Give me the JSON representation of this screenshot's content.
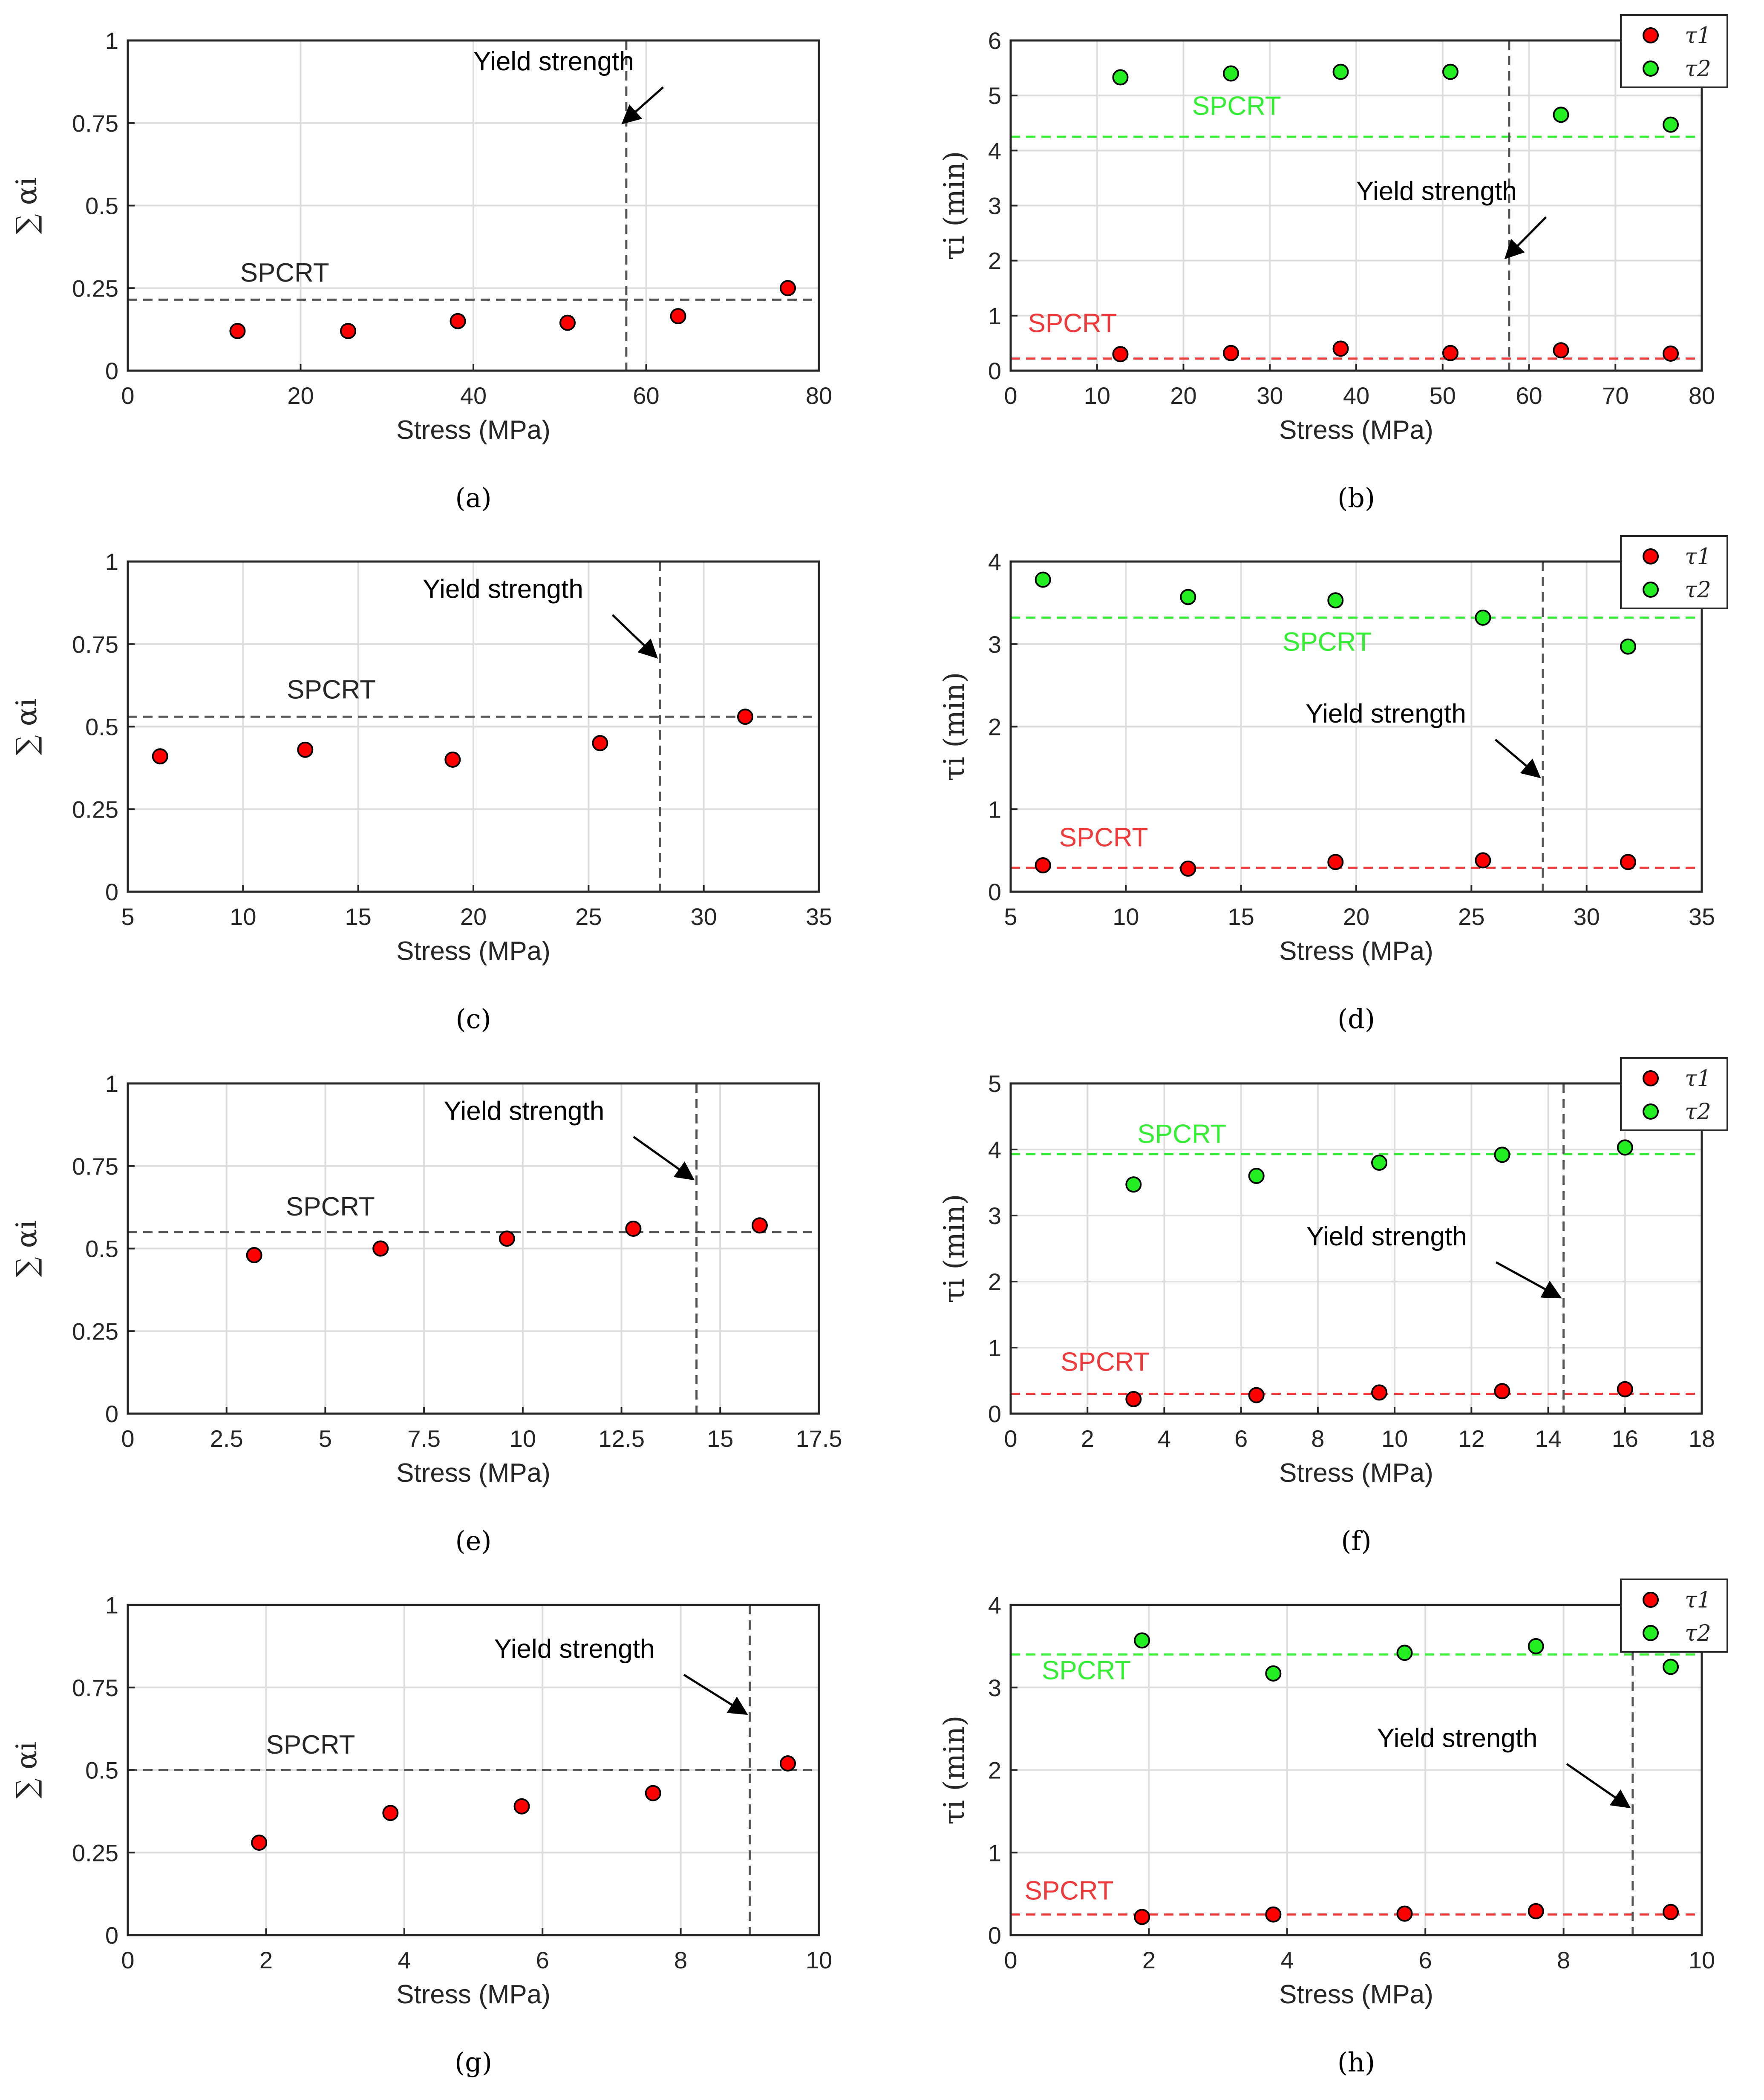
{
  "colors": {
    "tau1": "#ff0000",
    "tau2": "#22ee22",
    "tau1_line": "#ee3a3a",
    "tau2_line": "#33ee33",
    "marker_edge": "#000000",
    "sum_line": "#555555",
    "yield_line": "#555555",
    "grid": "#dddddd",
    "axes": "#262626"
  },
  "chart_data": [
    {
      "id": "a",
      "type": "scatter",
      "caption": "(a)",
      "xlabel": "Stress (MPa)",
      "ylabel": "∑ αi",
      "xlim": [
        0,
        80
      ],
      "ylim": [
        0,
        1
      ],
      "xticks": [
        0,
        20,
        40,
        60,
        80
      ],
      "xtick_labels": [
        "0",
        "20",
        "40",
        "60",
        "80"
      ],
      "yticks": [
        0,
        0.25,
        0.5,
        0.75,
        1
      ],
      "ytick_labels": [
        "0",
        "0.25",
        "0.5",
        "0.75",
        "1"
      ],
      "series": [
        {
          "name": "∑αi",
          "color_key": "tau1",
          "x": [
            12.7,
            25.5,
            38.2,
            50.9,
            63.7,
            76.4
          ],
          "y": [
            0.12,
            0.12,
            0.15,
            0.145,
            0.165,
            0.25
          ]
        }
      ],
      "hlines": [
        {
          "y": 0.215,
          "label": "SPCRT",
          "color_key": "sum_line",
          "label_x": 13,
          "label_y": 0.27
        }
      ],
      "yield": {
        "x": 57.7,
        "label": "Yield strength",
        "label_x": 40,
        "label_y": 0.91,
        "arrow_to_y": 0.75
      }
    },
    {
      "id": "b",
      "type": "scatter",
      "caption": "(b)",
      "xlabel": "Stress (MPa)",
      "ylabel": "τi (min)",
      "xlim": [
        0,
        80
      ],
      "ylim": [
        0,
        6
      ],
      "xticks": [
        0,
        10,
        20,
        30,
        40,
        50,
        60,
        70,
        80
      ],
      "xtick_labels": [
        "0",
        "10",
        "20",
        "30",
        "40",
        "50",
        "60",
        "70",
        "80"
      ],
      "yticks": [
        0,
        1,
        2,
        3,
        4,
        5,
        6
      ],
      "ytick_labels": [
        "0",
        "1",
        "2",
        "3",
        "4",
        "5",
        "6"
      ],
      "series": [
        {
          "name": "τ1",
          "color_key": "tau1",
          "x": [
            12.7,
            25.5,
            38.2,
            50.9,
            63.7,
            76.4
          ],
          "y": [
            0.3,
            0.32,
            0.4,
            0.32,
            0.37,
            0.31
          ]
        },
        {
          "name": "τ2",
          "color_key": "tau2",
          "x": [
            12.7,
            25.5,
            38.2,
            50.9,
            63.7,
            76.4
          ],
          "y": [
            5.33,
            5.4,
            5.43,
            5.43,
            4.65,
            4.47
          ]
        }
      ],
      "hlines": [
        {
          "y": 0.22,
          "label": "SPCRT",
          "color_key": "tau1_line",
          "label_x": 2,
          "label_y": 0.7
        },
        {
          "y": 4.25,
          "label": "SPCRT",
          "color_key": "tau2_line",
          "label_x": 21,
          "label_y": 4.65
        }
      ],
      "yield": {
        "x": 57.7,
        "label": "Yield strength",
        "label_x": 40,
        "label_y": 3.1,
        "arrow_to_y": 2.05
      },
      "legend": {
        "entries": [
          "τ1",
          "τ2"
        ],
        "position": "top-right-outside"
      }
    },
    {
      "id": "c",
      "type": "scatter",
      "caption": "(c)",
      "xlabel": "Stress (MPa)",
      "ylabel": "∑ αi",
      "xlim": [
        5,
        35
      ],
      "ylim": [
        0,
        1
      ],
      "xticks": [
        5,
        10,
        15,
        20,
        25,
        30,
        35
      ],
      "xtick_labels": [
        "5",
        "10",
        "15",
        "20",
        "25",
        "30",
        "35"
      ],
      "yticks": [
        0,
        0.25,
        0.5,
        0.75,
        1
      ],
      "ytick_labels": [
        "0",
        "0.25",
        "0.5",
        "0.75",
        "1"
      ],
      "series": [
        {
          "name": "∑αi",
          "color_key": "tau1",
          "x": [
            6.4,
            12.7,
            19.1,
            25.5,
            31.8
          ],
          "y": [
            0.41,
            0.43,
            0.4,
            0.45,
            0.53
          ]
        }
      ],
      "hlines": [
        {
          "y": 0.53,
          "label": "SPCRT",
          "color_key": "sum_line",
          "label_x": 11.9,
          "label_y": 0.585
        }
      ],
      "yield": {
        "x": 28.1,
        "label": "Yield strength",
        "label_x": 17.8,
        "label_y": 0.89,
        "arrow_to_y": 0.71
      }
    },
    {
      "id": "d",
      "type": "scatter",
      "caption": "(d)",
      "xlabel": "Stress (MPa)",
      "ylabel": "τi (min)",
      "xlim": [
        5,
        35
      ],
      "ylim": [
        0,
        4
      ],
      "xticks": [
        5,
        10,
        15,
        20,
        25,
        30,
        35
      ],
      "xtick_labels": [
        "5",
        "10",
        "15",
        "20",
        "25",
        "30",
        "35"
      ],
      "yticks": [
        0,
        1,
        2,
        3,
        4
      ],
      "ytick_labels": [
        "0",
        "1",
        "2",
        "3",
        "4"
      ],
      "series": [
        {
          "name": "τ1",
          "color_key": "tau1",
          "x": [
            6.4,
            12.7,
            19.1,
            25.5,
            31.8
          ],
          "y": [
            0.32,
            0.28,
            0.36,
            0.38,
            0.36
          ]
        },
        {
          "name": "τ2",
          "color_key": "tau2",
          "x": [
            6.4,
            12.7,
            19.1,
            25.5,
            31.8
          ],
          "y": [
            3.78,
            3.57,
            3.53,
            3.32,
            2.97
          ]
        }
      ],
      "hlines": [
        {
          "y": 0.29,
          "label": "SPCRT",
          "color_key": "tau1_line",
          "label_x": 7.1,
          "label_y": 0.55
        },
        {
          "y": 3.32,
          "label": "SPCRT",
          "color_key": "tau2_line",
          "label_x": 16.8,
          "label_y": 2.92
        }
      ],
      "yield": {
        "x": 28.1,
        "label": "Yield strength",
        "label_x": 17.8,
        "label_y": 2.05,
        "arrow_to_y": 1.39
      },
      "legend": {
        "entries": [
          "τ1",
          "τ2"
        ],
        "position": "top-right-outside"
      }
    },
    {
      "id": "e",
      "type": "scatter",
      "caption": "(e)",
      "xlabel": "Stress (MPa)",
      "ylabel": "∑ αi",
      "xlim": [
        0,
        17.5
      ],
      "ylim": [
        0,
        1
      ],
      "xticks": [
        0,
        2.5,
        5,
        7.5,
        10,
        12.5,
        15,
        17.5
      ],
      "xtick_labels": [
        "0",
        "2.5",
        "5",
        "7.5",
        "10",
        "12.5",
        "15",
        "17.5"
      ],
      "yticks": [
        0,
        0.25,
        0.5,
        0.75,
        1
      ],
      "ytick_labels": [
        "0",
        "0.25",
        "0.5",
        "0.75",
        "1"
      ],
      "series": [
        {
          "name": "∑αi",
          "color_key": "tau1",
          "x": [
            3.2,
            6.4,
            9.6,
            12.8,
            16
          ],
          "y": [
            0.48,
            0.5,
            0.53,
            0.56,
            0.57
          ]
        }
      ],
      "hlines": [
        {
          "y": 0.55,
          "label": "SPCRT",
          "color_key": "sum_line",
          "label_x": 4,
          "label_y": 0.6
        }
      ],
      "yield": {
        "x": 14.4,
        "label": "Yield strength",
        "label_x": 8,
        "label_y": 0.89,
        "arrow_to_y": 0.71
      }
    },
    {
      "id": "f",
      "type": "scatter",
      "caption": "(f)",
      "xlabel": "Stress (MPa)",
      "ylabel": "τi (min)",
      "xlim": [
        0,
        18
      ],
      "ylim": [
        0,
        5
      ],
      "xticks": [
        0,
        2,
        4,
        6,
        8,
        10,
        12,
        14,
        16,
        18
      ],
      "xtick_labels": [
        "0",
        "2",
        "4",
        "6",
        "8",
        "10",
        "12",
        "14",
        "16",
        "18"
      ],
      "yticks": [
        0,
        1,
        2,
        3,
        4,
        5
      ],
      "ytick_labels": [
        "0",
        "1",
        "2",
        "3",
        "4",
        "5"
      ],
      "series": [
        {
          "name": "τ1",
          "color_key": "tau1",
          "x": [
            3.2,
            6.4,
            9.6,
            12.8,
            16
          ],
          "y": [
            0.22,
            0.28,
            0.32,
            0.34,
            0.37
          ]
        },
        {
          "name": "τ2",
          "color_key": "tau2",
          "x": [
            3.2,
            6.4,
            9.6,
            12.8,
            16
          ],
          "y": [
            3.47,
            3.6,
            3.8,
            3.92,
            4.03
          ]
        }
      ],
      "hlines": [
        {
          "y": 0.3,
          "label": "SPCRT",
          "color_key": "tau1_line",
          "label_x": 1.3,
          "label_y": 0.65
        },
        {
          "y": 3.93,
          "label": "SPCRT",
          "color_key": "tau2_line",
          "label_x": 3.3,
          "label_y": 4.1
        }
      ],
      "yield": {
        "x": 14.4,
        "label": "Yield strength",
        "label_x": 7.7,
        "label_y": 2.55,
        "arrow_to_y": 1.76
      },
      "legend": {
        "entries": [
          "τ1",
          "τ2"
        ],
        "position": "top-right-outside"
      }
    },
    {
      "id": "g",
      "type": "scatter",
      "caption": "(g)",
      "xlabel": "Stress (MPa)",
      "ylabel": "∑ αi",
      "xlim": [
        0,
        10
      ],
      "ylim": [
        0,
        1
      ],
      "xticks": [
        0,
        2,
        4,
        6,
        8,
        10
      ],
      "xtick_labels": [
        "0",
        "2",
        "4",
        "6",
        "8",
        "10"
      ],
      "yticks": [
        0,
        0.25,
        0.5,
        0.75,
        1
      ],
      "ytick_labels": [
        "0",
        "0.25",
        "0.5",
        "0.75",
        "1"
      ],
      "series": [
        {
          "name": "∑αi",
          "color_key": "tau1",
          "x": [
            1.9,
            3.8,
            5.7,
            7.6,
            9.55
          ],
          "y": [
            0.28,
            0.37,
            0.39,
            0.43,
            0.52
          ]
        }
      ],
      "hlines": [
        {
          "y": 0.5,
          "label": "SPCRT",
          "color_key": "sum_line",
          "label_x": 2,
          "label_y": 0.55
        }
      ],
      "yield": {
        "x": 9,
        "label": "Yield strength",
        "label_x": 5.3,
        "label_y": 0.84,
        "arrow_to_y": 0.67
      }
    },
    {
      "id": "h",
      "type": "scatter",
      "caption": "(h)",
      "xlabel": "Stress (MPa)",
      "ylabel": "τi (min)",
      "xlim": [
        0,
        10
      ],
      "ylim": [
        0,
        4
      ],
      "xticks": [
        0,
        2,
        4,
        6,
        8,
        10
      ],
      "xtick_labels": [
        "0",
        "2",
        "4",
        "6",
        "8",
        "10"
      ],
      "yticks": [
        0,
        1,
        2,
        3,
        4
      ],
      "ytick_labels": [
        "0",
        "1",
        "2",
        "3",
        "4"
      ],
      "series": [
        {
          "name": "τ1",
          "color_key": "tau1",
          "x": [
            1.9,
            3.8,
            5.7,
            7.6,
            9.55
          ],
          "y": [
            0.22,
            0.25,
            0.26,
            0.29,
            0.28
          ]
        },
        {
          "name": "τ2",
          "color_key": "tau2",
          "x": [
            1.9,
            3.8,
            5.7,
            7.6,
            9.55
          ],
          "y": [
            3.57,
            3.17,
            3.42,
            3.5,
            3.25
          ]
        }
      ],
      "hlines": [
        {
          "y": 0.25,
          "label": "SPCRT",
          "color_key": "tau1_line",
          "label_x": 0.2,
          "label_y": 0.43
        },
        {
          "y": 3.4,
          "label": "SPCRT",
          "color_key": "tau2_line",
          "label_x": 0.45,
          "label_y": 3.1
        }
      ],
      "yield": {
        "x": 9,
        "label": "Yield strength",
        "label_x": 5.3,
        "label_y": 2.28,
        "arrow_to_y": 1.55
      },
      "legend": {
        "entries": [
          "τ1",
          "τ2"
        ],
        "position": "top-right-outside"
      }
    }
  ]
}
